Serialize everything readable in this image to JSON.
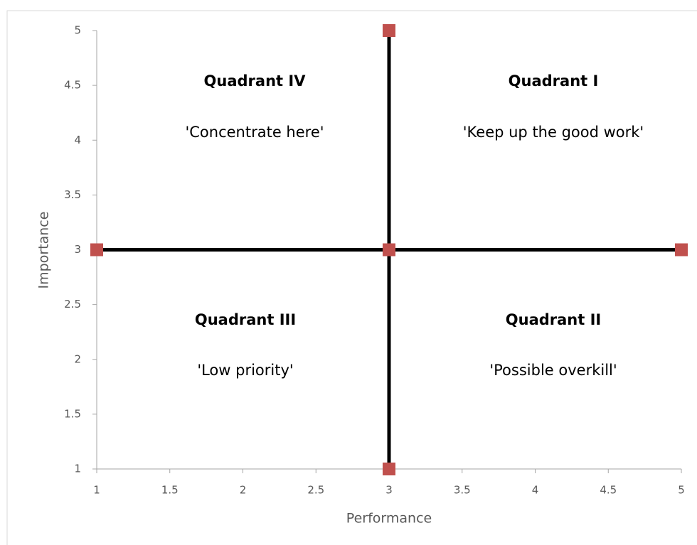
{
  "chart_data": {
    "type": "scatter",
    "x_label": "Performance",
    "y_label": "Importance",
    "xlim": [
      1,
      5
    ],
    "ylim": [
      1,
      5
    ],
    "xticks": [
      1,
      1.5,
      2,
      2.5,
      3,
      3.5,
      4,
      4.5,
      5
    ],
    "yticks": [
      1,
      1.5,
      2,
      2.5,
      3,
      3.5,
      4,
      4.5,
      5
    ],
    "line_color": "#000000",
    "series": [
      {
        "color": "#c0504d",
        "x": [
          1,
          3,
          5
        ],
        "values": [
          3,
          3,
          3
        ]
      },
      {
        "color": "#c0504d",
        "x": [
          3,
          3,
          3
        ],
        "values": [
          1,
          3,
          5
        ]
      }
    ],
    "annotations": [
      {
        "title": "Quadrant IV",
        "text": "'Concentrate here'"
      },
      {
        "title": "Quadrant I",
        "text": "'Keep up the good work'"
      },
      {
        "title": "Quadrant III",
        "text": "'Low priority'"
      },
      {
        "title": "Quadrant II",
        "text": "'Possible overkill'"
      }
    ]
  }
}
